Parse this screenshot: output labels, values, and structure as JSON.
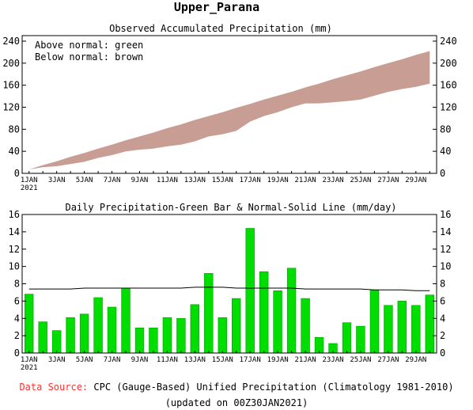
{
  "title": "Upper_Parana",
  "chart_data": [
    {
      "type": "area",
      "title": "Observed Accumulated Precipitation (mm)",
      "legend": [
        "Above normal: green",
        "Below normal: brown"
      ],
      "legend_placement": "top-left",
      "ylim": [
        0,
        250
      ],
      "yticks": [
        "0",
        "40",
        "80",
        "120",
        "160",
        "200",
        "240"
      ],
      "x": [
        1,
        2,
        3,
        4,
        5,
        6,
        7,
        8,
        9,
        10,
        11,
        12,
        13,
        14,
        15,
        16,
        17,
        18,
        19,
        20,
        21,
        22,
        23,
        24,
        25,
        26,
        27,
        28,
        29,
        30
      ],
      "series": [
        {
          "name": "Observed",
          "color": "#000000",
          "values": [
            7,
            11,
            13,
            17,
            21,
            28,
            33,
            40,
            43,
            45,
            49,
            52,
            58,
            67,
            71,
            77,
            94,
            104,
            111,
            120,
            127,
            127,
            129,
            131,
            134,
            141,
            148,
            153,
            157,
            163
          ]
        },
        {
          "name": "Normal",
          "color": "#000000",
          "values": [
            7,
            15,
            22,
            30,
            37,
            45,
            52,
            60,
            67,
            74,
            82,
            89,
            97,
            104,
            111,
            119,
            126,
            134,
            141,
            148,
            156,
            163,
            171,
            178,
            185,
            193,
            200,
            207,
            215,
            222
          ]
        }
      ],
      "fill_below_normal": "#c89e94",
      "fill_above_normal": "#00cc00"
    },
    {
      "type": "bar",
      "title": "Daily Precipitation-Green Bar & Normal-Solid Line (mm/day)",
      "ylim": [
        0,
        16
      ],
      "yticks": [
        "0",
        "2",
        "4",
        "6",
        "8",
        "10",
        "12",
        "14",
        "16"
      ],
      "categories": [
        1,
        2,
        3,
        4,
        5,
        6,
        7,
        8,
        9,
        10,
        11,
        12,
        13,
        14,
        15,
        16,
        17,
        18,
        19,
        20,
        21,
        22,
        23,
        24,
        25,
        26,
        27,
        28,
        29,
        30
      ],
      "values": [
        6.8,
        3.6,
        2.6,
        4.1,
        4.5,
        6.4,
        5.3,
        7.5,
        2.9,
        2.9,
        4.1,
        4.0,
        5.6,
        9.2,
        4.1,
        6.3,
        14.4,
        9.4,
        7.2,
        9.8,
        6.3,
        1.8,
        1.1,
        3.5,
        3.1,
        7.3,
        5.5,
        6.0,
        5.5,
        6.7
      ],
      "normal": [
        7.4,
        7.4,
        7.4,
        7.4,
        7.5,
        7.5,
        7.5,
        7.5,
        7.5,
        7.5,
        7.5,
        7.5,
        7.6,
        7.6,
        7.6,
        7.5,
        7.5,
        7.5,
        7.5,
        7.5,
        7.4,
        7.4,
        7.4,
        7.4,
        7.4,
        7.3,
        7.3,
        7.3,
        7.2,
        7.2
      ],
      "bar_color": "#00dd00",
      "bar_edge": "#00a000"
    }
  ],
  "x_axis": {
    "ticks": [
      {
        "day": 1,
        "label": "1JAN"
      },
      {
        "day": 3,
        "label": "3JAN"
      },
      {
        "day": 5,
        "label": "5JAN"
      },
      {
        "day": 7,
        "label": "7JAN"
      },
      {
        "day": 9,
        "label": "9JAN"
      },
      {
        "day": 11,
        "label": "11JAN"
      },
      {
        "day": 13,
        "label": "13JAN"
      },
      {
        "day": 15,
        "label": "15JAN"
      },
      {
        "day": 17,
        "label": "17JAN"
      },
      {
        "day": 19,
        "label": "19JAN"
      },
      {
        "day": 21,
        "label": "21JAN"
      },
      {
        "day": 23,
        "label": "23JAN"
      },
      {
        "day": 25,
        "label": "25JAN"
      },
      {
        "day": 27,
        "label": "27JAN"
      },
      {
        "day": 29,
        "label": "29JAN"
      }
    ],
    "year_label": "2021"
  },
  "footer": {
    "source_label": "Data Source:",
    "source_text": "CPC (Gauge-Based) Unified Precipitation (Climatology 1981-2010)",
    "updated": "(updated on 00Z30JAN2021)",
    "source_label_color": "#ff3030"
  }
}
